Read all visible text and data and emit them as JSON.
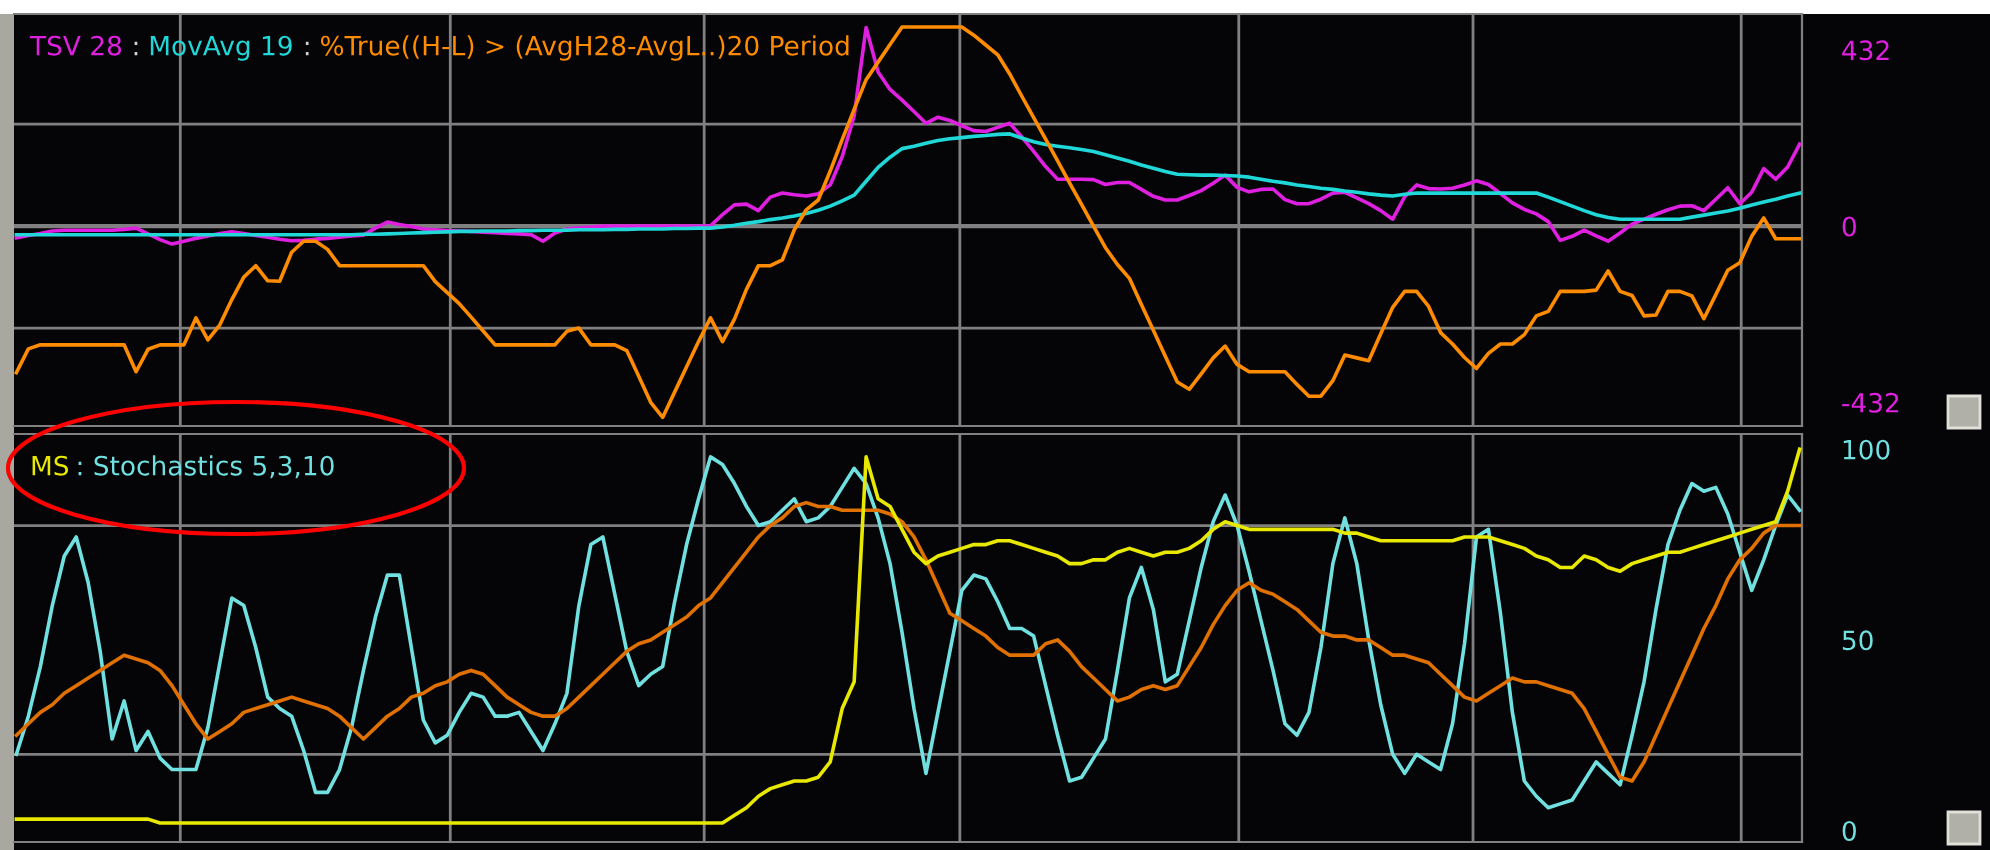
{
  "chart_data": [
    {
      "type": "line",
      "tick_labels": "y",
      "grid": "y",
      "categories": [
        null,
        null,
        null,
        null,
        null,
        null,
        null,
        null,
        null,
        null,
        null,
        null,
        null,
        null,
        null,
        null,
        null,
        null,
        null,
        null,
        null,
        null,
        null,
        null,
        null,
        null,
        null,
        null,
        null,
        null,
        null,
        null,
        null,
        null,
        null,
        null,
        null,
        null,
        null,
        null,
        null,
        null,
        null,
        null,
        null,
        null,
        null,
        null,
        null,
        null,
        null,
        null,
        null,
        null,
        null,
        null,
        null,
        null,
        null,
        null,
        null,
        null,
        null,
        null,
        null,
        null,
        null,
        null,
        null,
        null,
        null,
        null,
        null,
        null,
        null,
        null,
        null,
        null,
        null,
        null,
        null,
        null,
        null,
        null,
        null,
        null,
        null,
        null,
        null,
        null,
        null,
        null,
        null,
        null,
        null,
        null,
        null,
        null,
        null,
        null,
        null,
        null,
        null,
        null,
        null,
        null,
        null,
        null,
        null,
        null,
        null,
        null,
        null,
        null,
        null,
        null,
        null,
        null,
        null,
        null,
        null,
        null,
        null,
        null,
        null,
        null,
        null,
        null,
        null,
        null,
        null,
        null,
        null,
        null,
        null,
        null,
        null,
        null,
        null,
        null,
        null,
        null,
        null,
        null,
        null,
        null,
        null,
        null,
        null,
        null
      ],
      "ylim": [
        -490,
        520
      ],
      "yticks": [
        -432,
        {
          "value": -250,
          "label": null
        },
        0,
        {
          "value": 250,
          "label": null
        },
        432
      ],
      "ref_lines": [
        {
          "axis": "y",
          "value": 0,
          "color": "#808080"
        }
      ],
      "annotations": [
        ":",
        ":"
      ],
      "series": [
        {
          "name": "TSV 28",
          "color": "#e020e0",
          "values": [
            -29,
            -23,
            -18,
            -12,
            -10,
            -10,
            -10,
            -10,
            -10,
            -8,
            -5,
            -19,
            -33,
            -44,
            -37,
            -30,
            -24,
            -18,
            -14,
            -18,
            -23,
            -27,
            -32,
            -36,
            -35,
            -32,
            -30,
            -27,
            -24,
            -22,
            -5,
            10,
            4,
            -1,
            -7,
            -9,
            -11,
            -12,
            -13,
            -15,
            -16,
            -18,
            -19,
            -21,
            -37,
            -17,
            -7,
            -4,
            -2,
            0,
            0,
            0,
            0,
            0,
            0,
            0,
            0,
            0,
            1,
            28,
            52,
            54,
            38,
            71,
            81,
            77,
            74,
            79,
            101,
            170,
            270,
            487,
            378,
            335,
            309,
            281,
            252,
            267,
            259,
            246,
            234,
            232,
            242,
            252,
            219,
            183,
            146,
            115,
            115,
            115,
            114,
            102,
            107,
            107,
            90,
            73,
            64,
            64,
            75,
            87,
            105,
            125,
            95,
            84,
            90,
            91,
            65,
            55,
            55,
            66,
            81,
            83,
            69,
            55,
            38,
            17,
            72,
            101,
            92,
            91,
            93,
            101,
            111,
            102,
            80,
            57,
            41,
            30,
            11,
            -35,
            -25,
            -10,
            -24,
            -37,
            -17,
            5,
            17,
            29,
            40,
            49,
            50,
            38,
            66,
            94,
            55,
            83,
            141,
            115,
            145,
            201
          ]
        },
        {
          "name": "MovAvg 19",
          "color": "#20d8d8",
          "values": [
            -21,
            -21,
            -21,
            -21,
            -21,
            -21,
            -21,
            -21,
            -21,
            -21,
            -21,
            -21,
            -21,
            -21,
            -21,
            -21,
            -21,
            -21,
            -21,
            -21,
            -21,
            -21,
            -21,
            -21,
            -21,
            -21,
            -21,
            -21,
            -21,
            -20,
            -20,
            -19,
            -18,
            -17,
            -16,
            -15,
            -14,
            -13,
            -13,
            -12,
            -12,
            -12,
            -11,
            -11,
            -10,
            -10,
            -10,
            -9,
            -9,
            -9,
            -8,
            -8,
            -7,
            -7,
            -7,
            -6,
            -6,
            -5,
            -5,
            -2,
            2,
            7,
            11,
            16,
            20,
            25,
            31,
            39,
            49,
            62,
            76,
            110,
            144,
            169,
            190,
            196,
            203,
            210,
            214,
            217,
            220,
            222,
            225,
            226,
            216,
            207,
            200,
            196,
            192,
            188,
            183,
            175,
            167,
            159,
            150,
            142,
            134,
            127,
            126,
            125,
            125,
            124,
            123,
            120,
            115,
            110,
            106,
            101,
            97,
            93,
            90,
            86,
            83,
            79,
            76,
            74,
            78,
            81,
            81,
            81,
            81,
            81,
            81,
            81,
            81,
            81,
            81,
            81,
            71,
            60,
            49,
            38,
            28,
            21,
            17,
            17,
            17,
            17,
            17,
            17,
            22,
            27,
            32,
            37,
            44,
            52,
            59,
            66,
            74,
            81
          ]
        },
        {
          "name": "%True((H-L) > (AvgH28-AvgL..)20 Period",
          "color": "#ff8c00",
          "values": [
            -359,
            -301,
            -291,
            -291,
            -291,
            -291,
            -291,
            -291,
            -291,
            -291,
            -357,
            -302,
            -291,
            -291,
            -291,
            -225,
            -279,
            -242,
            -180,
            -125,
            -97,
            -134,
            -135,
            -64,
            -37,
            -37,
            -57,
            -97,
            -97,
            -97,
            -97,
            -97,
            -97,
            -97,
            -97,
            -136,
            -163,
            -190,
            -223,
            -257,
            -291,
            -291,
            -291,
            -291,
            -291,
            -291,
            -258,
            -250,
            -291,
            -291,
            -291,
            -305,
            -368,
            -432,
            -469,
            -407,
            -345,
            -283,
            -225,
            -283,
            -228,
            -155,
            -97,
            -97,
            -83,
            -9,
            40,
            64,
            135,
            212,
            286,
            359,
            402,
            445,
            488,
            488,
            488,
            488,
            488,
            488,
            468,
            444,
            420,
            373,
            319,
            266,
            213,
            160,
            106,
            53,
            0,
            -53,
            -94,
            -128,
            -192,
            -255,
            -319,
            -382,
            -400,
            -362,
            -323,
            -294,
            -339,
            -357,
            -357,
            -357,
            -357,
            -388,
            -417,
            -417,
            -379,
            -316,
            -323,
            -330,
            -264,
            -199,
            -160,
            -160,
            -197,
            -261,
            -289,
            -322,
            -349,
            -312,
            -289,
            -289,
            -266,
            -220,
            -209,
            -160,
            -160,
            -160,
            -157,
            -110,
            -160,
            -170,
            -220,
            -218,
            -160,
            -160,
            -171,
            -227,
            -168,
            -108,
            -90,
            -25,
            20,
            -31,
            -31,
            -31
          ]
        }
      ]
    },
    {
      "type": "line",
      "title": ": Stochastics 5,3,10",
      "tick_labels": "y",
      "grid": "y",
      "categories": [
        null,
        null,
        null,
        null,
        null,
        null,
        null,
        null,
        null,
        null,
        null,
        null,
        null,
        null,
        null,
        null,
        null,
        null,
        null,
        null,
        null,
        null,
        null,
        null,
        null,
        null,
        null,
        null,
        null,
        null,
        null,
        null,
        null,
        null,
        null,
        null,
        null,
        null,
        null,
        null,
        null,
        null,
        null,
        null,
        null,
        null,
        null,
        null,
        null,
        null,
        null,
        null,
        null,
        null,
        null,
        null,
        null,
        null,
        null,
        null,
        null,
        null,
        null,
        null,
        null,
        null,
        null,
        null,
        null,
        null,
        null,
        null,
        null,
        null,
        null,
        null,
        null,
        null,
        null,
        null,
        null,
        null,
        null,
        null,
        null,
        null,
        null,
        null,
        null,
        null,
        null,
        null,
        null,
        null,
        null,
        null,
        null,
        null,
        null,
        null,
        null,
        null,
        null,
        null,
        null,
        null,
        null,
        null,
        null,
        null,
        null,
        null,
        null,
        null,
        null,
        null,
        null,
        null,
        null,
        null,
        null,
        null,
        null,
        null,
        null,
        null,
        null,
        null,
        null,
        null,
        null,
        null,
        null,
        null,
        null,
        null,
        null,
        null,
        null,
        null,
        null,
        null,
        null,
        null,
        null,
        null,
        null,
        null,
        null,
        null
      ],
      "ylim": [
        -3,
        104
      ],
      "yticks": [
        0,
        {
          "value": 20,
          "label": null
        },
        50,
        {
          "value": 80,
          "label": null
        },
        100
      ],
      "series": [
        {
          "color": "#70e0e0",
          "values": [
            20,
            30,
            43,
            59,
            72,
            77,
            65,
            47,
            24,
            34,
            21,
            26,
            19,
            16,
            16,
            16,
            27,
            44,
            61,
            59,
            48,
            35,
            32,
            30,
            21,
            10,
            10,
            16,
            27,
            42,
            56,
            67,
            67,
            48,
            29,
            23,
            25,
            31,
            36,
            35,
            30,
            30,
            31,
            26,
            21,
            28,
            36,
            59,
            75,
            77,
            62,
            47,
            38,
            41,
            43,
            60,
            75,
            87,
            98,
            96,
            91,
            85,
            80,
            81,
            84,
            87,
            81,
            82,
            85,
            90,
            95,
            91,
            82,
            70,
            52,
            32,
            15,
            31,
            47,
            63,
            67,
            66,
            60,
            53,
            53,
            51,
            38,
            25,
            13,
            14,
            19,
            24,
            42,
            61,
            69,
            58,
            39,
            41,
            55,
            69,
            81,
            88,
            80,
            68,
            55,
            42,
            28,
            25,
            31,
            48,
            70,
            82,
            70,
            50,
            33,
            20,
            15,
            20,
            18,
            16,
            28,
            49,
            77,
            79,
            57,
            31,
            13,
            9,
            6,
            7,
            8,
            13,
            18,
            15,
            12,
            25,
            39,
            58,
            75,
            84,
            91,
            89,
            90,
            83,
            73,
            63,
            71,
            80,
            88,
            84
          ]
        },
        {
          "color": "#e07000",
          "values": [
            25,
            28,
            31,
            33,
            36,
            38,
            40,
            42,
            44,
            46,
            45,
            44,
            42,
            38,
            33,
            28,
            24,
            26,
            28,
            31,
            32,
            33,
            34,
            35,
            34,
            33,
            32,
            30,
            27,
            24,
            27,
            30,
            32,
            35,
            36,
            38,
            39,
            41,
            42,
            41,
            38,
            35,
            33,
            31,
            30,
            30,
            32,
            35,
            38,
            41,
            44,
            47,
            49,
            50,
            52,
            54,
            56,
            59,
            61,
            65,
            69,
            73,
            77,
            80,
            82,
            85,
            86,
            85,
            85,
            84,
            84,
            84,
            84,
            83,
            81,
            77,
            71,
            64,
            57,
            55,
            53,
            51,
            48,
            46,
            46,
            46,
            49,
            50,
            47,
            43,
            40,
            37,
            34,
            35,
            37,
            38,
            37,
            38,
            43,
            48,
            54,
            59,
            63,
            65,
            63,
            62,
            60,
            58,
            55,
            52,
            51,
            51,
            50,
            50,
            48,
            46,
            46,
            45,
            44,
            41,
            38,
            35,
            34,
            36,
            38,
            40,
            39,
            39,
            38,
            37,
            36,
            32,
            26,
            20,
            14,
            13,
            18,
            25,
            32,
            39,
            46,
            53,
            59,
            66,
            71,
            74,
            78,
            80,
            80,
            80
          ]
        },
        {
          "name": "MS",
          "color": "#e8e800",
          "values": [
            3,
            3,
            3,
            3,
            3,
            3,
            3,
            3,
            3,
            3,
            3,
            3,
            2,
            2,
            2,
            2,
            2,
            2,
            2,
            2,
            2,
            2,
            2,
            2,
            2,
            2,
            2,
            2,
            2,
            2,
            2,
            2,
            2,
            2,
            2,
            2,
            2,
            2,
            2,
            2,
            2,
            2,
            2,
            2,
            2,
            2,
            2,
            2,
            2,
            2,
            2,
            2,
            2,
            2,
            2,
            2,
            2,
            2,
            2,
            2,
            4,
            6,
            9,
            11,
            12,
            13,
            13,
            14,
            18,
            32,
            39,
            98,
            87,
            85,
            79,
            73,
            70,
            72,
            73,
            74,
            75,
            75,
            76,
            76,
            75,
            74,
            73,
            72,
            70,
            70,
            71,
            71,
            73,
            74,
            73,
            72,
            73,
            73,
            74,
            76,
            79,
            81,
            80,
            79,
            79,
            79,
            79,
            79,
            79,
            79,
            79,
            78,
            78,
            77,
            76,
            76,
            76,
            76,
            76,
            76,
            76,
            77,
            77,
            77,
            76,
            75,
            74,
            72,
            71,
            69,
            69,
            72,
            71,
            69,
            68,
            70,
            71,
            72,
            73,
            73,
            74,
            75,
            76,
            77,
            78,
            79,
            80,
            81,
            89,
            100
          ]
        }
      ]
    }
  ]
}
